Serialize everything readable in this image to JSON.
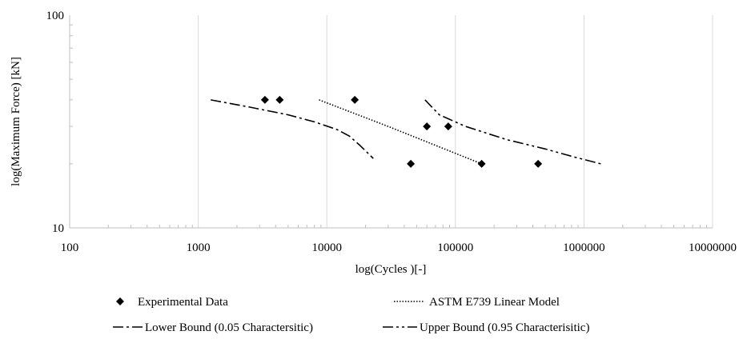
{
  "chart_data": {
    "type": "scatter",
    "title": "",
    "xlabel": "log(Cycles )[-]",
    "ylabel": "log(Maximum Force) [kN]",
    "x_scale": "log",
    "y_scale": "log",
    "xlim": [
      100,
      10000000
    ],
    "ylim": [
      10,
      100
    ],
    "x_ticks": [
      "100",
      "1000",
      "10000",
      "100000",
      "1000000",
      "10000000"
    ],
    "y_ticks": [
      "10",
      "100"
    ],
    "grid": "vertical major lines",
    "legend_position": "bottom",
    "series": [
      {
        "name": "Experimental Data",
        "kind": "markers",
        "marker": "diamond",
        "points": [
          [
            3300,
            40
          ],
          [
            4300,
            40
          ],
          [
            16500,
            40
          ],
          [
            60000,
            30
          ],
          [
            88000,
            30
          ],
          [
            45000,
            20
          ],
          [
            160000,
            20
          ],
          [
            440000,
            20
          ]
        ]
      },
      {
        "name": "ASTM E739 Linear Model",
        "kind": "line",
        "dash": "dotted",
        "points": [
          [
            8700,
            40
          ],
          [
            30000,
            30
          ],
          [
            160000,
            20
          ]
        ]
      },
      {
        "name": "Lower Bound (0.05 Charactersitic)",
        "kind": "line",
        "dash": "dash-dot",
        "points": [
          [
            1250,
            40
          ],
          [
            2500,
            37
          ],
          [
            5000,
            34
          ],
          [
            8000,
            31.5
          ],
          [
            12000,
            29
          ],
          [
            15000,
            27
          ],
          [
            18000,
            24.5
          ],
          [
            23000,
            21.2
          ]
        ]
      },
      {
        "name": "Upper Bound (0.95 Characterisitic)",
        "kind": "line",
        "dash": "dash-dot-dot",
        "points": [
          [
            58000,
            40
          ],
          [
            75000,
            34
          ],
          [
            120000,
            30
          ],
          [
            250000,
            26
          ],
          [
            500000,
            23.5
          ],
          [
            850000,
            21.5
          ],
          [
            1350000,
            20
          ]
        ]
      }
    ]
  }
}
